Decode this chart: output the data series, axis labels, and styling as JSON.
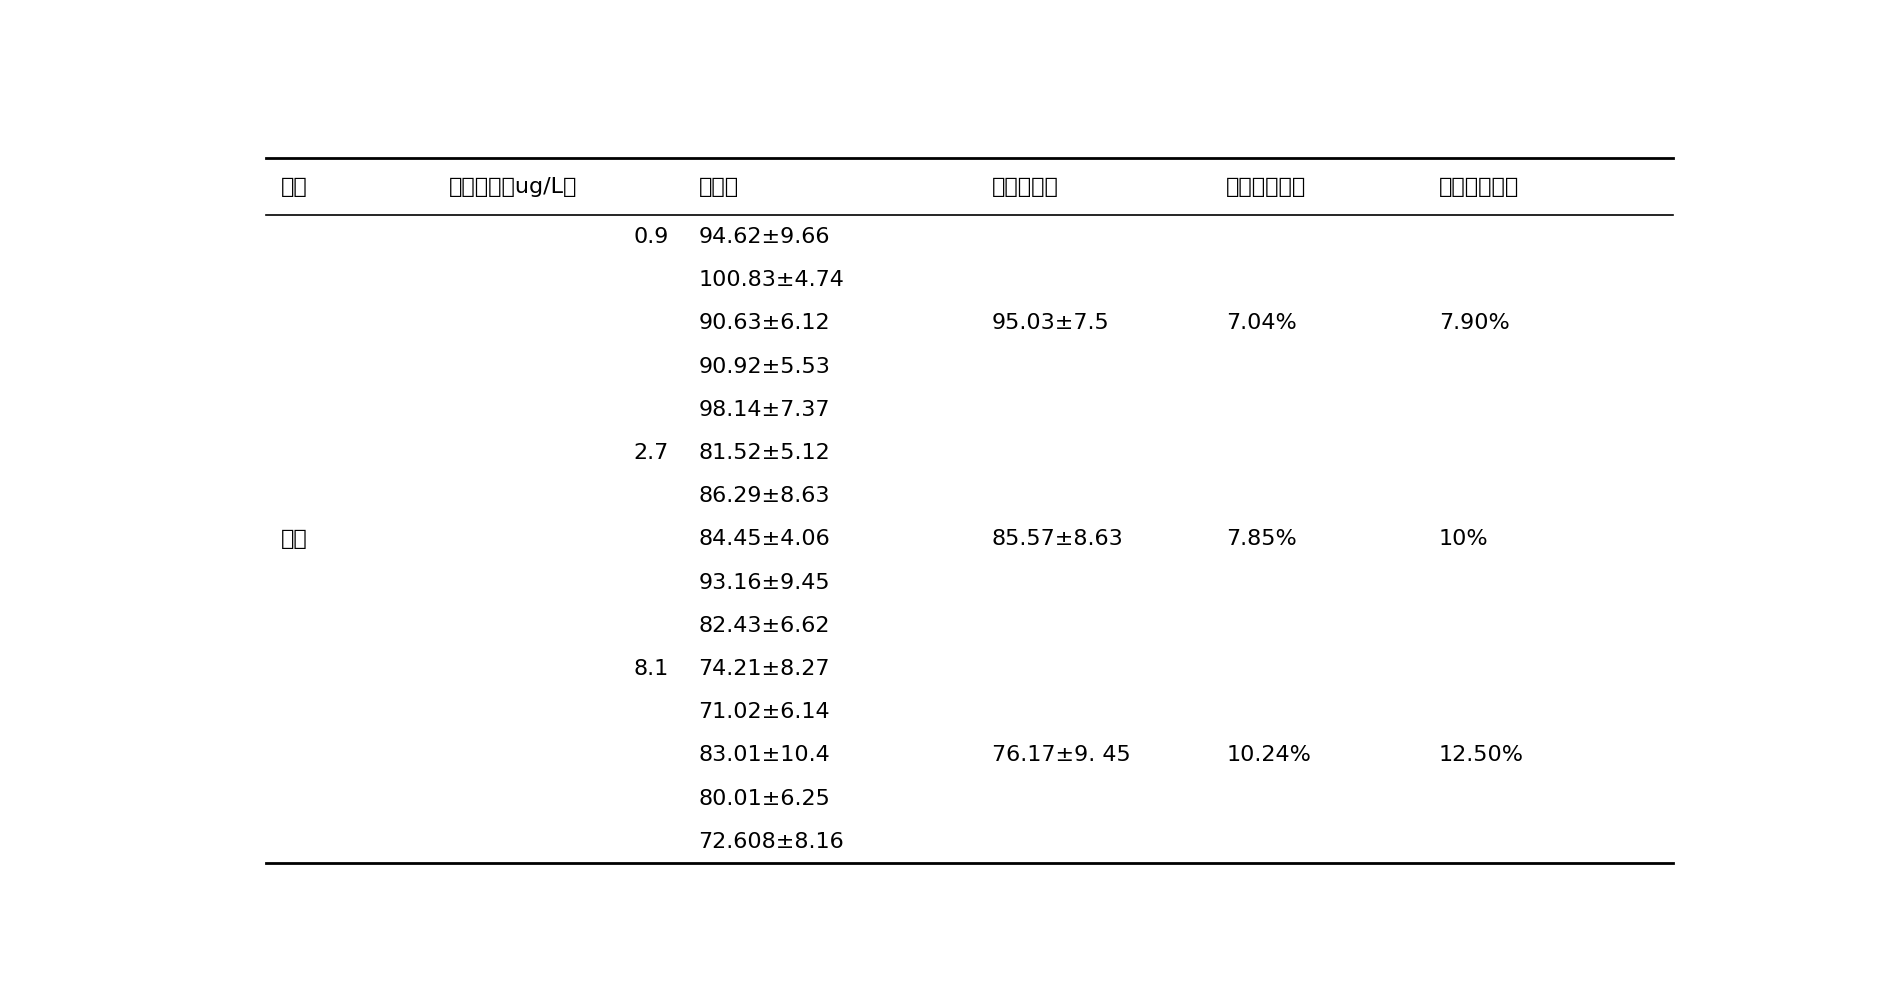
{
  "headers": [
    "样品",
    "添加浓度（ug/L）",
    "回收率",
    "平均回收率",
    "批内变异系数",
    "批间变异系数"
  ],
  "rows": [
    {
      "sample": "",
      "conc": "0.9",
      "recovery": "94.62±9.66",
      "avg": "",
      "intra": "",
      "inter": ""
    },
    {
      "sample": "",
      "conc": "",
      "recovery": "100.83±4.74",
      "avg": "",
      "intra": "",
      "inter": ""
    },
    {
      "sample": "",
      "conc": "",
      "recovery": "90.63±6.12",
      "avg": "95.03±7.5",
      "intra": "7.04%",
      "inter": "7.90%"
    },
    {
      "sample": "",
      "conc": "",
      "recovery": "90.92±5.53",
      "avg": "",
      "intra": "",
      "inter": ""
    },
    {
      "sample": "",
      "conc": "",
      "recovery": "98.14±7.37",
      "avg": "",
      "intra": "",
      "inter": ""
    },
    {
      "sample": "",
      "conc": "2.7",
      "recovery": "81.52±5.12",
      "avg": "",
      "intra": "",
      "inter": ""
    },
    {
      "sample": "",
      "conc": "",
      "recovery": "86.29±8.63",
      "avg": "",
      "intra": "",
      "inter": ""
    },
    {
      "sample": "组织",
      "conc": "",
      "recovery": "84.45±4.06",
      "avg": "85.57±8.63",
      "intra": "7.85%",
      "inter": "10%"
    },
    {
      "sample": "",
      "conc": "",
      "recovery": "93.16±9.45",
      "avg": "",
      "intra": "",
      "inter": ""
    },
    {
      "sample": "",
      "conc": "",
      "recovery": "82.43±6.62",
      "avg": "",
      "intra": "",
      "inter": ""
    },
    {
      "sample": "",
      "conc": "8.1",
      "recovery": "74.21±8.27",
      "avg": "",
      "intra": "",
      "inter": ""
    },
    {
      "sample": "",
      "conc": "",
      "recovery": "71.02±6.14",
      "avg": "",
      "intra": "",
      "inter": ""
    },
    {
      "sample": "",
      "conc": "",
      "recovery": "83.01±10.4",
      "avg": "76.17±9. 45",
      "intra": "10.24%",
      "inter": "12.50%"
    },
    {
      "sample": "",
      "conc": "",
      "recovery": "80.01±6.25",
      "avg": "",
      "intra": "",
      "inter": ""
    },
    {
      "sample": "",
      "conc": "",
      "recovery": "72.608±8.16",
      "avg": "",
      "intra": "",
      "inter": ""
    }
  ],
  "background_color": "#ffffff",
  "text_color": "#000000",
  "line_color": "#000000",
  "font_size": 16,
  "header_font_size": 16
}
